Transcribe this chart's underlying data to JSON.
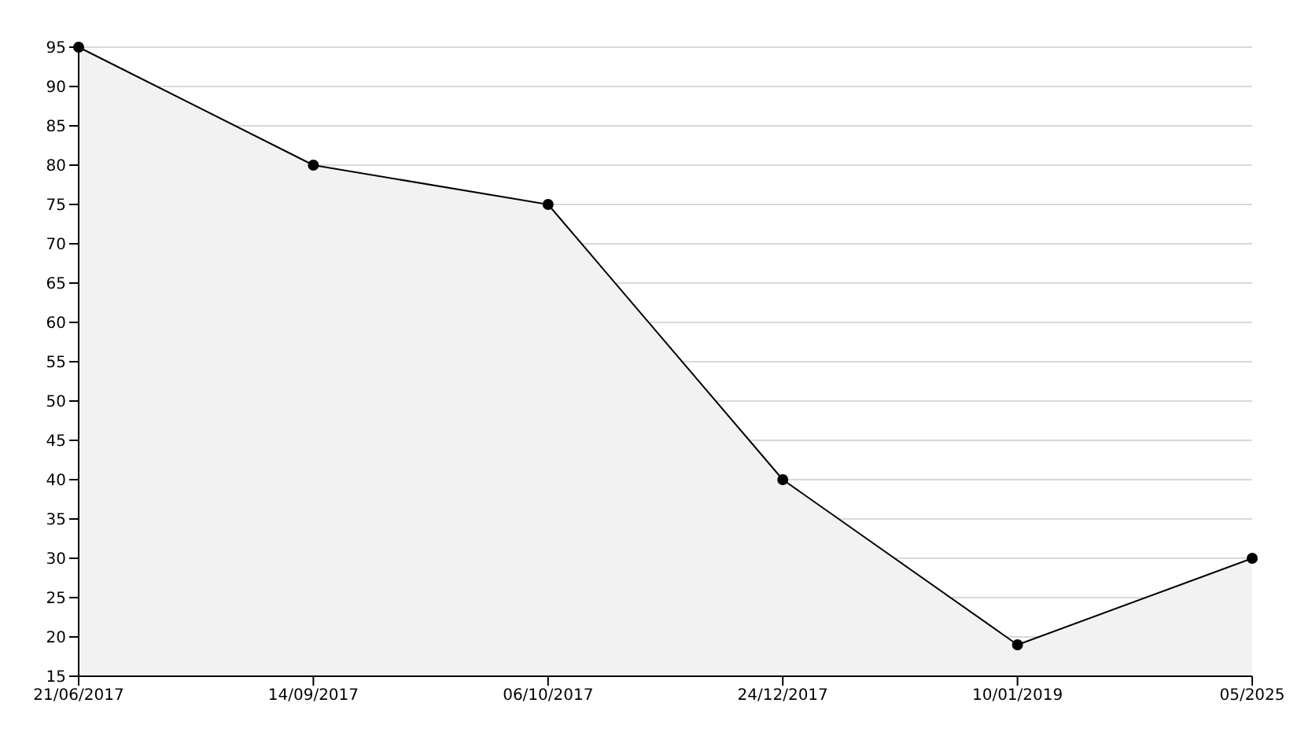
{
  "chart_data": {
    "type": "area",
    "categories": [
      "21/06/2017",
      "14/09/2017",
      "06/10/2017",
      "24/12/2017",
      "10/01/2019",
      "05/2025"
    ],
    "values": [
      95,
      80,
      75,
      40,
      19,
      30
    ],
    "color": "#000000",
    "ylim": [
      15,
      95
    ],
    "yticks": [
      15,
      20,
      25,
      30,
      35,
      40,
      45,
      50,
      55,
      60,
      65,
      70,
      75,
      80,
      85,
      90,
      95
    ],
    "grid": "y",
    "marker": "circle"
  }
}
